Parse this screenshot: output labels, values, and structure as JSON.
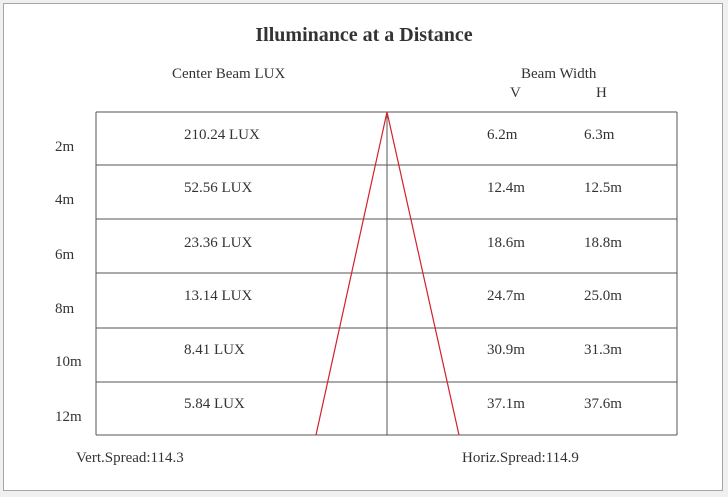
{
  "title": "Illuminance at a Distance",
  "headers": {
    "center": "Center Beam LUX",
    "beam_width": "Beam Width",
    "v": "V",
    "h": "H"
  },
  "rows": [
    {
      "distance": "2m",
      "lux": "210.24 LUX",
      "v": "6.2m",
      "h": "6.3m"
    },
    {
      "distance": "4m",
      "lux": "52.56 LUX",
      "v": "12.4m",
      "h": "12.5m"
    },
    {
      "distance": "6m",
      "lux": "23.36 LUX",
      "v": "18.6m",
      "h": "18.8m"
    },
    {
      "distance": "8m",
      "lux": "13.14 LUX",
      "v": "24.7m",
      "h": "25.0m"
    },
    {
      "distance": "10m",
      "lux": "8.41 LUX",
      "v": "30.9m",
      "h": "31.3m"
    },
    {
      "distance": "12m",
      "lux": "5.84 LUX",
      "v": "37.1m",
      "h": "37.6m"
    }
  ],
  "footer": {
    "vert": "Vert.Spread:114.3",
    "horiz": "Horiz.Spread:114.9"
  },
  "colors": {
    "grid": "#555555",
    "beam": "#d42027"
  }
}
